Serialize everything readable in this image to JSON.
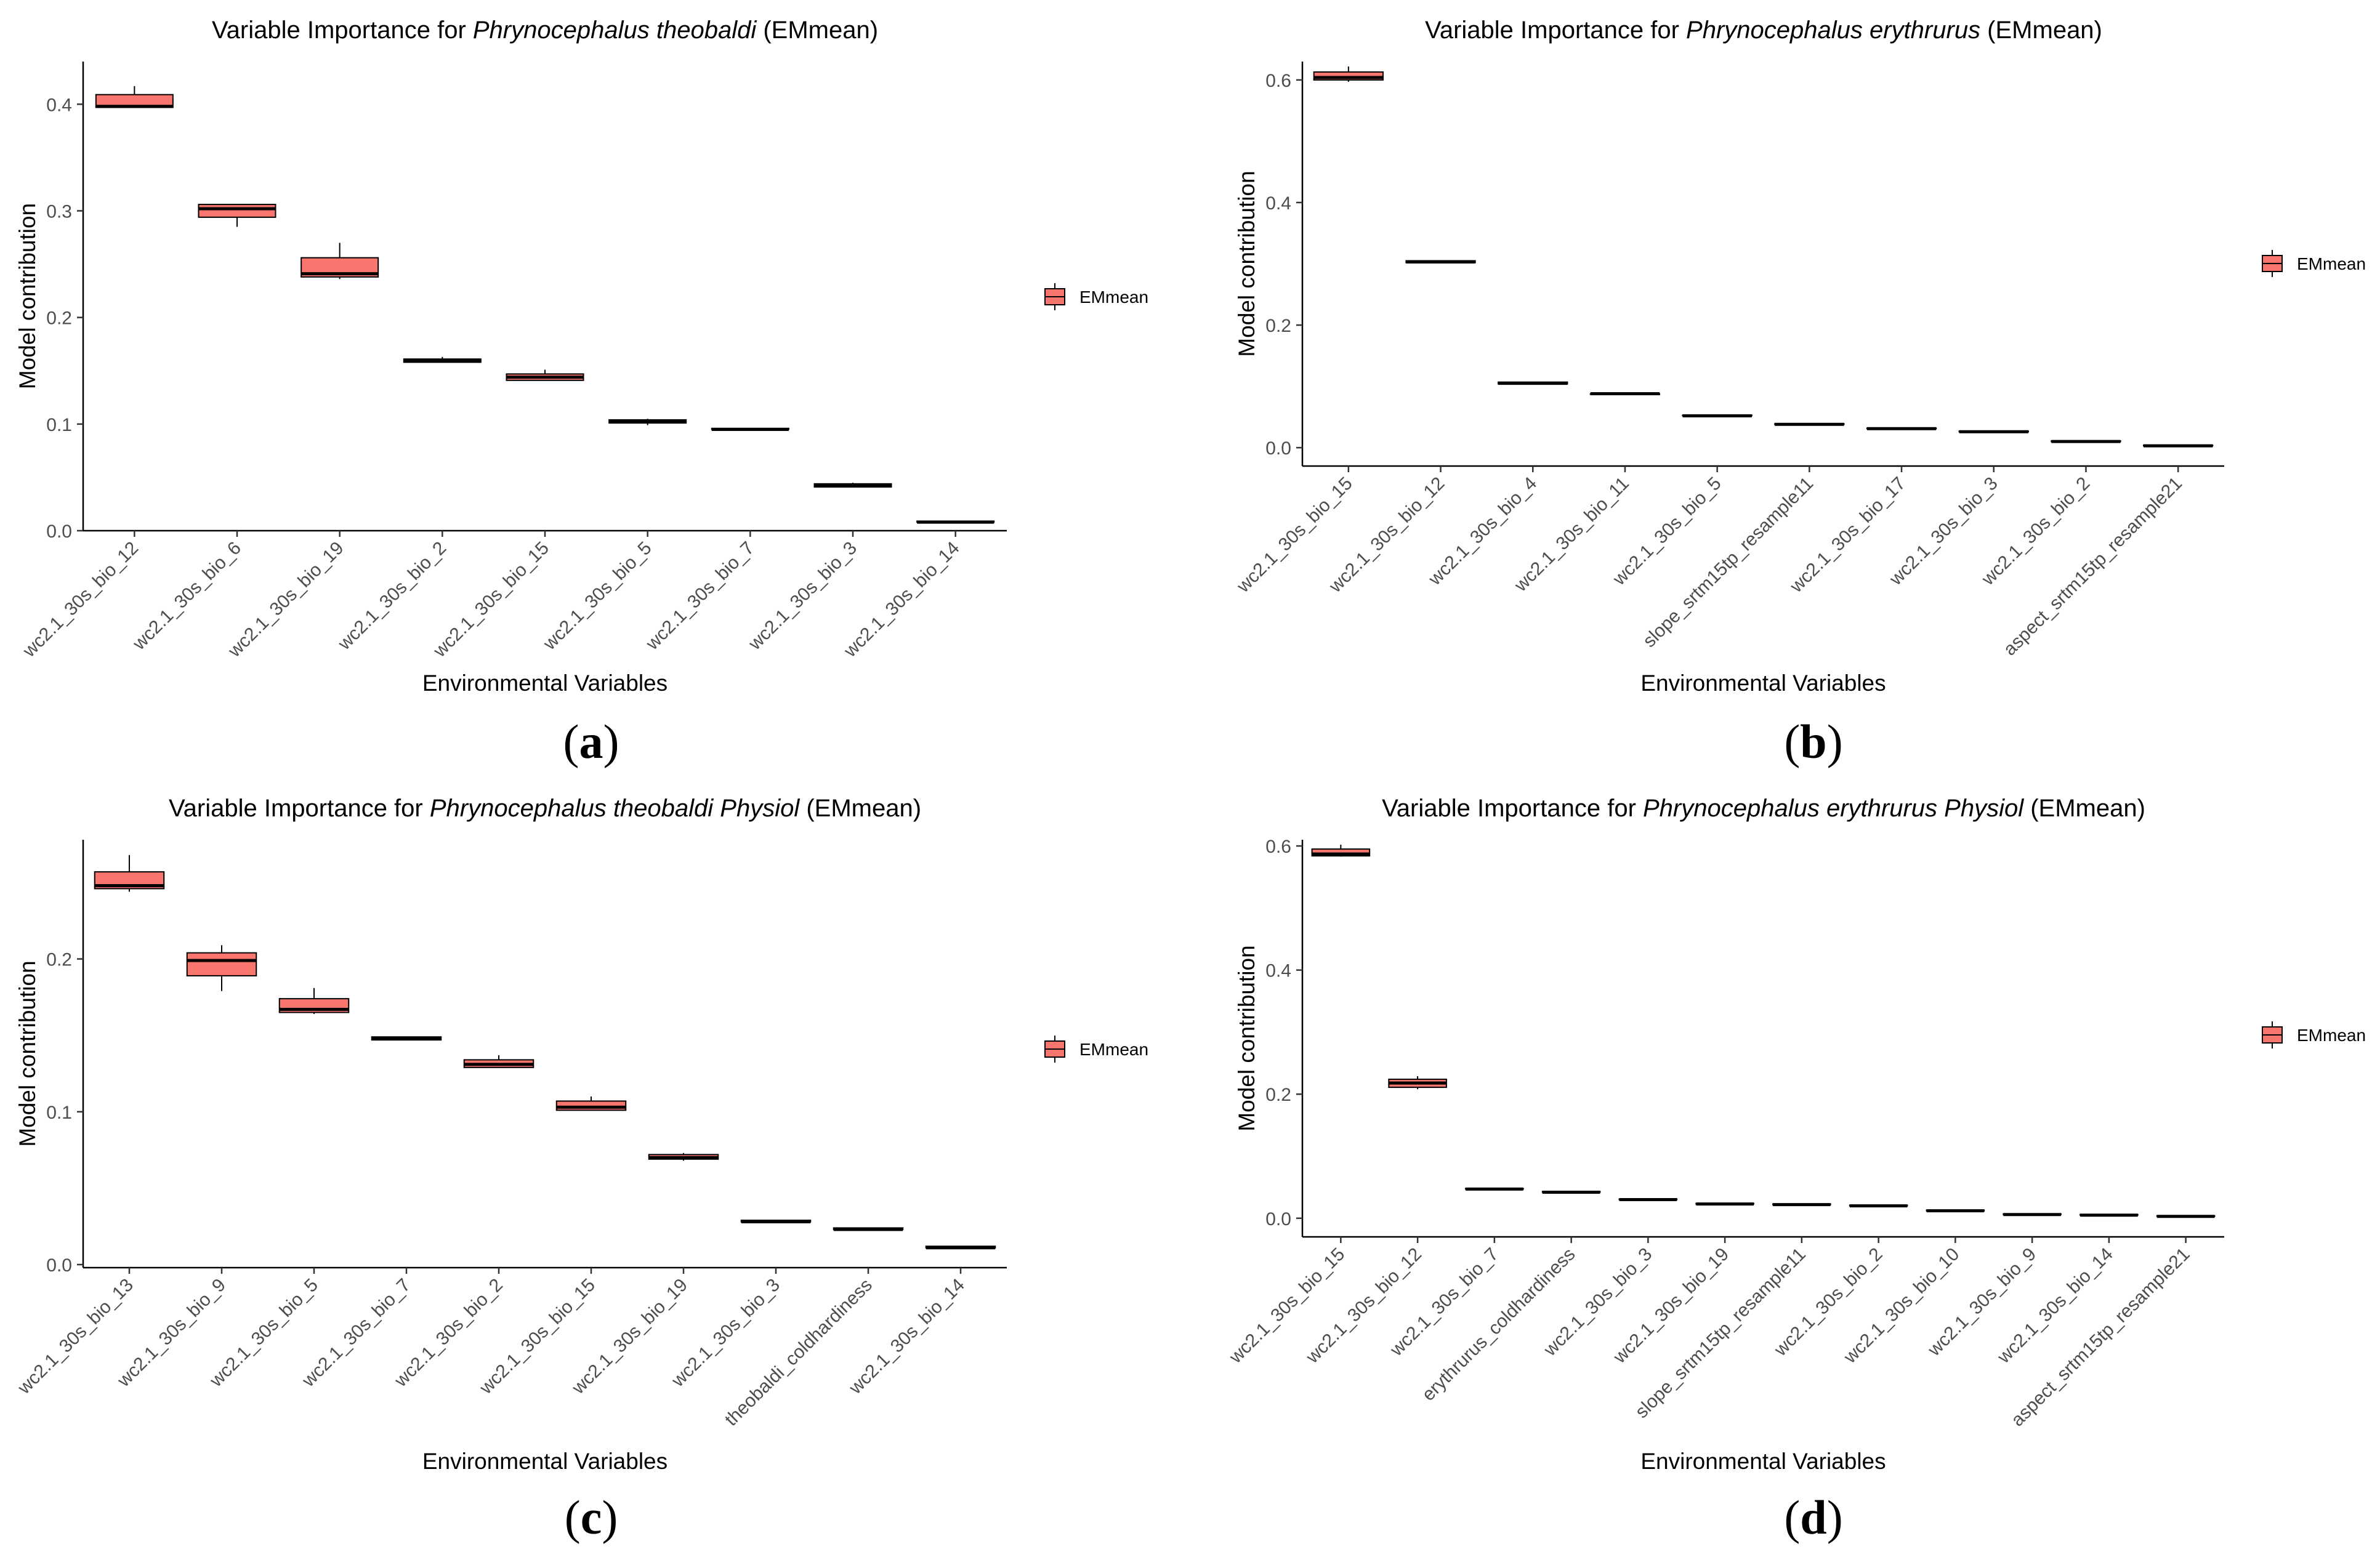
{
  "legend_label": "EMmean",
  "box_fill": "#F8766D",
  "chart_data": [
    {
      "type": "boxplot",
      "caption": "(a)",
      "caption_letter": "a",
      "title_pre": "Variable Importance for ",
      "title_italic": "Phrynocephalus theobaldi",
      "title_post": " (EMmean)",
      "xlabel": "Environmental Variables",
      "ylabel": "Model contribution",
      "ylim": [
        0,
        0.44
      ],
      "yticks": [
        0.0,
        0.1,
        0.2,
        0.3,
        0.4
      ],
      "yticklabels": [
        "0.0",
        "0.1",
        "0.2",
        "0.3",
        "0.4"
      ],
      "legend": [
        "EMmean"
      ],
      "categories": [
        "wc2.1_30s_bio_12",
        "wc2.1_30s_bio_6",
        "wc2.1_30s_bio_19",
        "wc2.1_30s_bio_2",
        "wc2.1_30s_bio_15",
        "wc2.1_30s_bio_5",
        "wc2.1_30s_bio_7",
        "wc2.1_30s_bio_3",
        "wc2.1_30s_bio_14"
      ],
      "boxes": [
        {
          "min": 0.397,
          "q1": 0.397,
          "median": 0.398,
          "q3": 0.409,
          "max": 0.417
        },
        {
          "min": 0.285,
          "q1": 0.294,
          "median": 0.302,
          "q3": 0.306,
          "max": 0.306
        },
        {
          "min": 0.236,
          "q1": 0.238,
          "median": 0.241,
          "q3": 0.256,
          "max": 0.27
        },
        {
          "min": 0.158,
          "q1": 0.158,
          "median": 0.159,
          "q3": 0.161,
          "max": 0.163
        },
        {
          "min": 0.141,
          "q1": 0.141,
          "median": 0.144,
          "q3": 0.147,
          "max": 0.151
        },
        {
          "min": 0.099,
          "q1": 0.101,
          "median": 0.102,
          "q3": 0.104,
          "max": 0.105
        },
        {
          "min": 0.095,
          "q1": 0.095,
          "median": 0.095,
          "q3": 0.096,
          "max": 0.096
        },
        {
          "min": 0.041,
          "q1": 0.041,
          "median": 0.042,
          "q3": 0.044,
          "max": 0.045
        },
        {
          "min": 0.008,
          "q1": 0.008,
          "median": 0.008,
          "q3": 0.009,
          "max": 0.009
        }
      ]
    },
    {
      "type": "boxplot",
      "caption": "(b)",
      "caption_letter": "b",
      "title_pre": "Variable Importance for ",
      "title_italic": "Phrynocephalus erythrurus",
      "title_post": " (EMmean)",
      "xlabel": "Environmental Variables",
      "ylabel": "Model contribution",
      "ylim": [
        -0.03,
        0.63
      ],
      "yticks": [
        0.0,
        0.2,
        0.4,
        0.6
      ],
      "yticklabels": [
        "0.0",
        "0.2",
        "0.4",
        "0.6"
      ],
      "legend": [
        "EMmean"
      ],
      "categories": [
        "wc2.1_30s_bio_15",
        "wc2.1_30s_bio_12",
        "wc2.1_30s_bio_4",
        "wc2.1_30s_bio_11",
        "wc2.1_30s_bio_5",
        "slope_srtm15tp_resample11",
        "wc2.1_30s_bio_17",
        "wc2.1_30s_bio_3",
        "wc2.1_30s_bio_2",
        "aspect_srtm15tp_resample21"
      ],
      "boxes": [
        {
          "min": 0.597,
          "q1": 0.6,
          "median": 0.604,
          "q3": 0.613,
          "max": 0.622
        },
        {
          "min": 0.302,
          "q1": 0.302,
          "median": 0.303,
          "q3": 0.305,
          "max": 0.306
        },
        {
          "min": 0.104,
          "q1": 0.104,
          "median": 0.105,
          "q3": 0.107,
          "max": 0.107
        },
        {
          "min": 0.087,
          "q1": 0.087,
          "median": 0.088,
          "q3": 0.088,
          "max": 0.089
        },
        {
          "min": 0.052,
          "q1": 0.052,
          "median": 0.052,
          "q3": 0.053,
          "max": 0.053
        },
        {
          "min": 0.038,
          "q1": 0.038,
          "median": 0.038,
          "q3": 0.039,
          "max": 0.039
        },
        {
          "min": 0.031,
          "q1": 0.031,
          "median": 0.031,
          "q3": 0.032,
          "max": 0.032
        },
        {
          "min": 0.026,
          "q1": 0.026,
          "median": 0.026,
          "q3": 0.027,
          "max": 0.027
        },
        {
          "min": 0.01,
          "q1": 0.01,
          "median": 0.01,
          "q3": 0.011,
          "max": 0.011
        },
        {
          "min": 0.003,
          "q1": 0.003,
          "median": 0.003,
          "q3": 0.004,
          "max": 0.004
        }
      ]
    },
    {
      "type": "boxplot",
      "caption": "(c)",
      "caption_letter": "c",
      "title_pre": "Variable Importance for ",
      "title_italic": "Phrynocephalus theobaldi Physiol",
      "title_post": " (EMmean)",
      "xlabel": "Environmental Variables",
      "ylabel": "Model contribution",
      "ylim": [
        -0.002,
        0.278
      ],
      "yticks": [
        0.0,
        0.1,
        0.2
      ],
      "yticklabels": [
        "0.0",
        "0.1",
        "0.2"
      ],
      "legend": [
        "EMmean"
      ],
      "categories": [
        "wc2.1_30s_bio_13",
        "wc2.1_30s_bio_9",
        "wc2.1_30s_bio_5",
        "wc2.1_30s_bio_7",
        "wc2.1_30s_bio_2",
        "wc2.1_30s_bio_15",
        "wc2.1_30s_bio_19",
        "wc2.1_30s_bio_3",
        "theobaldi_coldhardiness",
        "wc2.1_30s_bio_14"
      ],
      "boxes": [
        {
          "min": 0.244,
          "q1": 0.246,
          "median": 0.248,
          "q3": 0.257,
          "max": 0.268
        },
        {
          "min": 0.179,
          "q1": 0.189,
          "median": 0.199,
          "q3": 0.204,
          "max": 0.209
        },
        {
          "min": 0.164,
          "q1": 0.165,
          "median": 0.167,
          "q3": 0.174,
          "max": 0.181
        },
        {
          "min": 0.147,
          "q1": 0.147,
          "median": 0.148,
          "q3": 0.149,
          "max": 0.149
        },
        {
          "min": 0.129,
          "q1": 0.129,
          "median": 0.131,
          "q3": 0.134,
          "max": 0.137
        },
        {
          "min": 0.101,
          "q1": 0.101,
          "median": 0.103,
          "q3": 0.107,
          "max": 0.11
        },
        {
          "min": 0.068,
          "q1": 0.069,
          "median": 0.07,
          "q3": 0.072,
          "max": 0.073
        },
        {
          "min": 0.028,
          "q1": 0.028,
          "median": 0.028,
          "q3": 0.029,
          "max": 0.029
        },
        {
          "min": 0.023,
          "q1": 0.023,
          "median": 0.023,
          "q3": 0.024,
          "max": 0.024
        },
        {
          "min": 0.011,
          "q1": 0.011,
          "median": 0.011,
          "q3": 0.012,
          "max": 0.012
        }
      ]
    },
    {
      "type": "boxplot",
      "caption": "(d)",
      "caption_letter": "d",
      "title_pre": "Variable Importance for ",
      "title_italic": "Phrynocephalus erythrurus Physiol",
      "title_post": " (EMmean)",
      "xlabel": "Environmental Variables",
      "ylabel": "Model contribution",
      "ylim": [
        -0.03,
        0.61
      ],
      "yticks": [
        0.0,
        0.2,
        0.4,
        0.6
      ],
      "yticklabels": [
        "0.0",
        "0.2",
        "0.4",
        "0.6"
      ],
      "legend": [
        "EMmean"
      ],
      "categories": [
        "wc2.1_30s_bio_15",
        "wc2.1_30s_bio_12",
        "wc2.1_30s_bio_7",
        "erythrurus_coldhardiness",
        "wc2.1_30s_bio_3",
        "wc2.1_30s_bio_19",
        "slope_srtm15tp_resample11",
        "wc2.1_30s_bio_2",
        "wc2.1_30s_bio_10",
        "wc2.1_30s_bio_9",
        "wc2.1_30s_bio_14",
        "aspect_srtm15tp_resample21"
      ],
      "boxes": [
        {
          "min": 0.583,
          "q1": 0.584,
          "median": 0.587,
          "q3": 0.595,
          "max": 0.602
        },
        {
          "min": 0.208,
          "q1": 0.211,
          "median": 0.218,
          "q3": 0.224,
          "max": 0.229
        },
        {
          "min": 0.047,
          "q1": 0.047,
          "median": 0.047,
          "q3": 0.048,
          "max": 0.048
        },
        {
          "min": 0.042,
          "q1": 0.042,
          "median": 0.042,
          "q3": 0.043,
          "max": 0.043
        },
        {
          "min": 0.03,
          "q1": 0.03,
          "median": 0.03,
          "q3": 0.031,
          "max": 0.031
        },
        {
          "min": 0.023,
          "q1": 0.023,
          "median": 0.023,
          "q3": 0.024,
          "max": 0.024
        },
        {
          "min": 0.022,
          "q1": 0.022,
          "median": 0.022,
          "q3": 0.023,
          "max": 0.023
        },
        {
          "min": 0.02,
          "q1": 0.02,
          "median": 0.02,
          "q3": 0.021,
          "max": 0.021
        },
        {
          "min": 0.012,
          "q1": 0.012,
          "median": 0.012,
          "q3": 0.013,
          "max": 0.013
        },
        {
          "min": 0.006,
          "q1": 0.006,
          "median": 0.006,
          "q3": 0.007,
          "max": 0.007
        },
        {
          "min": 0.005,
          "q1": 0.005,
          "median": 0.005,
          "q3": 0.006,
          "max": 0.006
        },
        {
          "min": 0.003,
          "q1": 0.003,
          "median": 0.003,
          "q3": 0.004,
          "max": 0.004
        }
      ]
    }
  ]
}
